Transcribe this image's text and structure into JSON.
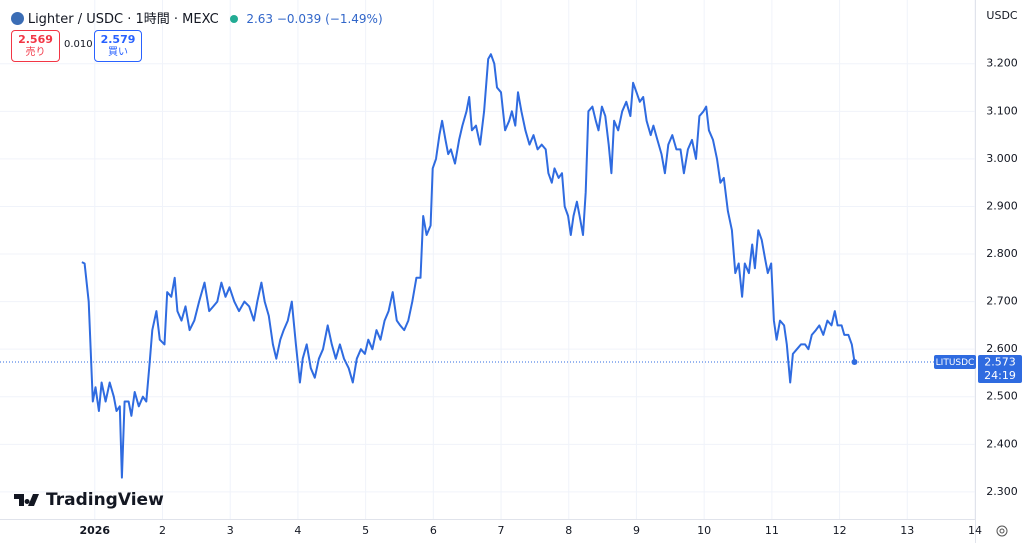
{
  "header": {
    "symbol": "Lighter / USDC · 1時間 · MEXC",
    "change": "−0.039 (−1.49%)",
    "bid": {
      "price": 2.569,
      "label": "売り"
    },
    "spread": "0.010",
    "ask": {
      "price": 2.579,
      "label": "買い"
    }
  },
  "chart_data": {
    "type": "line",
    "currency": "USDC",
    "countdown": "24:19",
    "brand": "TradingView",
    "grid": true,
    "xlim": [
      -0.4,
      14
    ],
    "ylim": [
      2.243,
      3.334
    ],
    "xticks": [
      {
        "value": 1,
        "label": "2026"
      },
      2,
      3,
      4,
      5,
      6,
      7,
      8,
      9,
      10,
      11,
      12,
      13,
      14
    ],
    "yticks": [
      {
        "value": 2.3,
        "label": "2.300"
      },
      {
        "value": 2.4,
        "label": "2.400"
      },
      {
        "value": 2.5,
        "label": "2.500"
      },
      {
        "value": 2.6,
        "label": "2.600"
      },
      {
        "value": 2.7,
        "label": "2.700"
      },
      {
        "value": 2.8,
        "label": "2.800"
      },
      {
        "value": 2.9,
        "label": "2.900"
      },
      {
        "value": 3.0,
        "label": "3.000"
      },
      {
        "value": 3.1,
        "label": "3.100"
      },
      {
        "value": 3.2,
        "label": "3.200"
      }
    ],
    "x": [
      0.81,
      0.85,
      0.91,
      0.97,
      1.01,
      1.06,
      1.1,
      1.16,
      1.22,
      1.28,
      1.32,
      1.37,
      1.4,
      1.44,
      1.5,
      1.54,
      1.59,
      1.65,
      1.71,
      1.76,
      1.81,
      1.85,
      1.91,
      1.96,
      2.03,
      2.07,
      2.13,
      2.18,
      2.22,
      2.28,
      2.34,
      2.4,
      2.47,
      2.54,
      2.62,
      2.69,
      2.75,
      2.81,
      2.87,
      2.93,
      2.99,
      3.06,
      3.13,
      3.21,
      3.28,
      3.35,
      3.4,
      3.46,
      3.51,
      3.57,
      3.63,
      3.68,
      3.74,
      3.79,
      3.85,
      3.91,
      3.97,
      4.03,
      4.07,
      4.13,
      4.19,
      4.25,
      4.31,
      4.37,
      4.44,
      4.5,
      4.56,
      4.62,
      4.68,
      4.75,
      4.81,
      4.87,
      4.93,
      4.99,
      5.04,
      5.1,
      5.16,
      5.22,
      5.28,
      5.34,
      5.4,
      5.46,
      5.51,
      5.57,
      5.63,
      5.69,
      5.75,
      5.81,
      5.85,
      5.9,
      5.96,
      5.99,
      6.04,
      6.09,
      6.13,
      6.18,
      6.22,
      6.26,
      6.32,
      6.38,
      6.43,
      6.49,
      6.53,
      6.57,
      6.63,
      6.69,
      6.75,
      6.81,
      6.85,
      6.9,
      6.94,
      7.0,
      7.06,
      7.12,
      7.16,
      7.21,
      7.25,
      7.3,
      7.36,
      7.42,
      7.48,
      7.54,
      7.6,
      7.66,
      7.7,
      7.75,
      7.79,
      7.85,
      7.9,
      7.94,
      7.99,
      8.03,
      8.07,
      8.12,
      8.16,
      8.21,
      8.25,
      8.29,
      8.35,
      8.4,
      8.44,
      8.49,
      8.54,
      8.59,
      8.63,
      8.67,
      8.73,
      8.79,
      8.85,
      8.91,
      8.95,
      9.0,
      9.05,
      9.1,
      9.15,
      9.21,
      9.25,
      9.31,
      9.37,
      9.42,
      9.47,
      9.53,
      9.59,
      9.65,
      9.7,
      9.76,
      9.82,
      9.88,
      9.93,
      9.99,
      10.03,
      10.07,
      10.13,
      10.19,
      10.24,
      10.29,
      10.35,
      10.41,
      10.46,
      10.51,
      10.56,
      10.6,
      10.66,
      10.71,
      10.75,
      10.8,
      10.85,
      10.9,
      10.94,
      10.99,
      11.03,
      11.07,
      11.12,
      11.18,
      11.22,
      11.27,
      11.31,
      11.37,
      11.43,
      11.49,
      11.54,
      11.59,
      11.65,
      11.7,
      11.76,
      11.82,
      11.88,
      11.93,
      11.97,
      12.03,
      12.07,
      12.13,
      12.18,
      12.22
    ],
    "series": [
      {
        "name": "LITUSDC",
        "color": "#2f6be0",
        "values": [
          2.783,
          2.78,
          2.7,
          2.49,
          2.52,
          2.47,
          2.53,
          2.49,
          2.53,
          2.5,
          2.47,
          2.48,
          2.33,
          2.49,
          2.49,
          2.46,
          2.51,
          2.48,
          2.5,
          2.49,
          2.57,
          2.64,
          2.68,
          2.62,
          2.61,
          2.72,
          2.71,
          2.75,
          2.68,
          2.66,
          2.69,
          2.64,
          2.66,
          2.7,
          2.74,
          2.68,
          2.69,
          2.7,
          2.74,
          2.71,
          2.73,
          2.7,
          2.68,
          2.7,
          2.69,
          2.66,
          2.7,
          2.74,
          2.7,
          2.67,
          2.61,
          2.58,
          2.62,
          2.64,
          2.66,
          2.7,
          2.61,
          2.53,
          2.58,
          2.61,
          2.56,
          2.54,
          2.58,
          2.6,
          2.65,
          2.61,
          2.58,
          2.61,
          2.58,
          2.56,
          2.53,
          2.58,
          2.6,
          2.59,
          2.62,
          2.6,
          2.64,
          2.62,
          2.66,
          2.68,
          2.72,
          2.66,
          2.65,
          2.64,
          2.66,
          2.7,
          2.75,
          2.75,
          2.88,
          2.84,
          2.86,
          2.98,
          3.0,
          3.05,
          3.08,
          3.04,
          3.01,
          3.02,
          2.99,
          3.04,
          3.07,
          3.1,
          3.13,
          3.06,
          3.07,
          3.03,
          3.1,
          3.21,
          3.22,
          3.2,
          3.15,
          3.14,
          3.06,
          3.08,
          3.1,
          3.07,
          3.14,
          3.1,
          3.06,
          3.03,
          3.05,
          3.02,
          3.03,
          3.02,
          2.97,
          2.95,
          2.98,
          2.96,
          2.97,
          2.9,
          2.88,
          2.84,
          2.88,
          2.91,
          2.88,
          2.84,
          2.93,
          3.1,
          3.11,
          3.08,
          3.06,
          3.11,
          3.09,
          3.03,
          2.97,
          3.08,
          3.06,
          3.1,
          3.12,
          3.09,
          3.16,
          3.14,
          3.12,
          3.13,
          3.08,
          3.05,
          3.07,
          3.04,
          3.01,
          2.97,
          3.03,
          3.05,
          3.02,
          3.02,
          2.97,
          3.02,
          3.04,
          3.0,
          3.09,
          3.1,
          3.11,
          3.06,
          3.04,
          3.0,
          2.95,
          2.96,
          2.89,
          2.85,
          2.76,
          2.78,
          2.71,
          2.78,
          2.76,
          2.82,
          2.77,
          2.85,
          2.83,
          2.79,
          2.76,
          2.78,
          2.66,
          2.62,
          2.66,
          2.65,
          2.61,
          2.53,
          2.59,
          2.6,
          2.61,
          2.61,
          2.6,
          2.63,
          2.64,
          2.65,
          2.63,
          2.66,
          2.65,
          2.68,
          2.65,
          2.65,
          2.63,
          2.63,
          2.61,
          2.573
        ]
      }
    ]
  }
}
